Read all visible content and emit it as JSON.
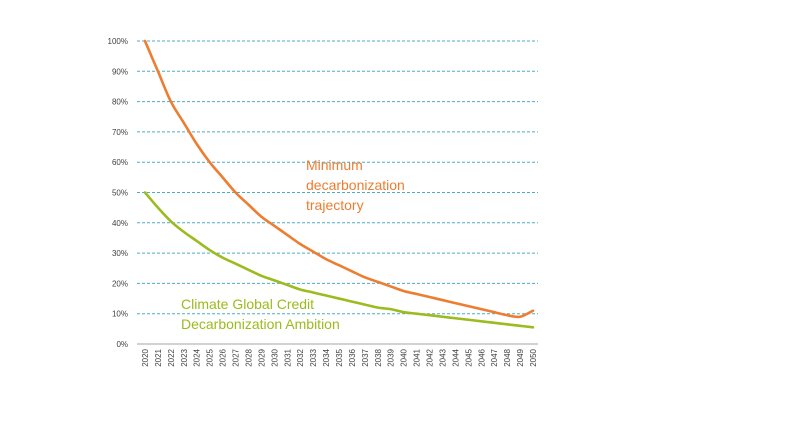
{
  "chart_data": {
    "type": "line",
    "title": "",
    "xlabel": "",
    "ylabel": "",
    "x": [
      2020,
      2021,
      2022,
      2023,
      2024,
      2025,
      2026,
      2027,
      2028,
      2029,
      2030,
      2031,
      2032,
      2033,
      2034,
      2035,
      2036,
      2037,
      2038,
      2039,
      2040,
      2041,
      2042,
      2043,
      2044,
      2045,
      2046,
      2047,
      2048,
      2049,
      2050
    ],
    "y_ticks": [
      "0%",
      "10%",
      "20%",
      "30%",
      "40%",
      "50%",
      "60%",
      "70%",
      "80%",
      "90%",
      "100%"
    ],
    "ylim": [
      0,
      100
    ],
    "grid": "horizontal-dashed",
    "series": [
      {
        "name": "Minimum decarbonization trajectory",
        "label_lines": [
          "Minimum",
          "decarbonization",
          "trajectory"
        ],
        "color": "#ED7D31",
        "values": [
          100,
          90,
          80,
          73,
          66,
          60,
          55,
          50,
          46,
          42,
          39,
          36,
          33,
          30.5,
          28,
          26,
          24,
          22,
          20.5,
          19,
          17.5,
          16.5,
          15.5,
          14.5,
          13.5,
          12.5,
          11.5,
          10.5,
          9.5,
          9,
          11
        ]
      },
      {
        "name": "Climate Global Credit Decarbonization Ambition",
        "label_lines": [
          "Climate Global Credit",
          "Decarbonization Ambition"
        ],
        "color": "#9BBB1E",
        "values": [
          50,
          45,
          40.5,
          37,
          34,
          31,
          28.5,
          26.5,
          24.5,
          22.5,
          21,
          19.5,
          18,
          17,
          16,
          15,
          14,
          13,
          12,
          11.5,
          10.5,
          10,
          9.5,
          9,
          8.5,
          8,
          7.5,
          7,
          6.5,
          6,
          5.5
        ]
      }
    ],
    "x_tick_labels": [
      "2020",
      "2021",
      "2022",
      "2023",
      "2024",
      "2025",
      "2026",
      "2027",
      "2028",
      "2029",
      "2030",
      "2031",
      "2032",
      "2033",
      "2034",
      "2035",
      "2036",
      "2037",
      "2038",
      "2039",
      "2040",
      "2041",
      "2042",
      "2043",
      "2044",
      "2045",
      "2046",
      "2047",
      "2048",
      "2049",
      "2050"
    ]
  },
  "colors": {
    "grid": "#4BACC6",
    "axis": "#A6A6A6",
    "tick_text": "#404040"
  }
}
